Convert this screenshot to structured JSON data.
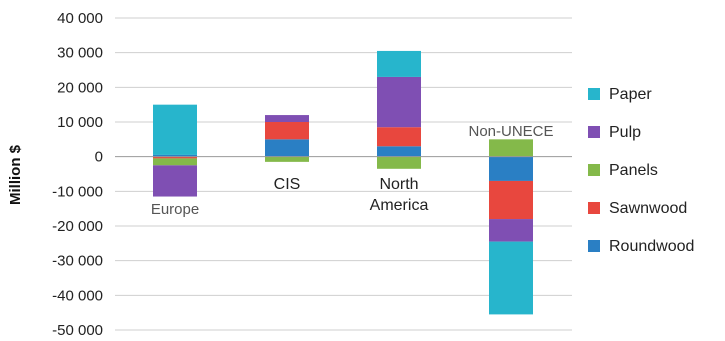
{
  "chart_data": {
    "type": "bar",
    "stacked": true,
    "ylabel": "Million $",
    "ylim": [
      -50000,
      40000
    ],
    "yticks": [
      40000,
      30000,
      20000,
      10000,
      0,
      -10000,
      -20000,
      -30000,
      -40000,
      -50000
    ],
    "ytick_labels": [
      "40 000",
      "30 000",
      "20 000",
      "10 000",
      "0",
      "-10 000",
      "-20 000",
      "-30 000",
      "-40 000",
      "-50 000"
    ],
    "grid": true,
    "legend_position": "right",
    "categories": [
      "Europe",
      "CIS",
      "North America",
      "Non-UNECE"
    ],
    "category_labels": [
      [
        "Europe"
      ],
      [
        "CIS"
      ],
      [
        "North",
        "America"
      ],
      [
        "Non-UNECE"
      ]
    ],
    "series": [
      {
        "name": "Roundwood",
        "color": "#2a7fc4",
        "values": [
          500,
          5000,
          3000,
          -7000
        ]
      },
      {
        "name": "Sawnwood",
        "color": "#e8473e",
        "values": [
          -500,
          5000,
          5500,
          -11000
        ]
      },
      {
        "name": "Panels",
        "color": "#84b94a",
        "values": [
          -2000,
          -1500,
          -3500,
          5000
        ]
      },
      {
        "name": "Pulp",
        "color": "#7f4fb3",
        "values": [
          -9000,
          2000,
          14500,
          -6500
        ]
      },
      {
        "name": "Paper",
        "color": "#27b5cc",
        "values": [
          14500,
          0,
          7500,
          -21000
        ]
      }
    ]
  }
}
